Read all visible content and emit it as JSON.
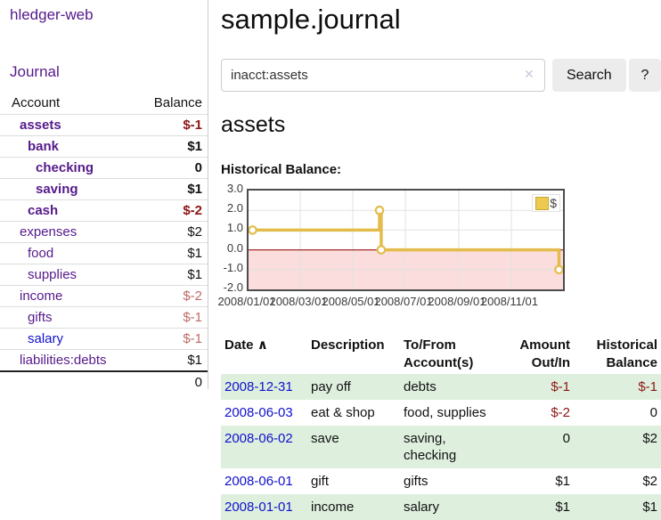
{
  "sidebar": {
    "app_title": "hledger-web",
    "journal_link": "Journal",
    "accounts_table": {
      "headers": [
        "Account",
        "Balance"
      ],
      "rows": [
        {
          "name": "assets",
          "depth": 0,
          "bold": true,
          "balance": "$-1",
          "balance_class": "neg-strong"
        },
        {
          "name": "bank",
          "depth": 1,
          "bold": true,
          "balance": "$1",
          "balance_class": ""
        },
        {
          "name": "checking",
          "depth": 2,
          "bold": true,
          "balance": "0",
          "balance_class": ""
        },
        {
          "name": "saving",
          "depth": 2,
          "bold": true,
          "balance": "$1",
          "balance_class": ""
        },
        {
          "name": "cash",
          "depth": 1,
          "bold": true,
          "balance": "$-2",
          "balance_class": "neg-strong"
        },
        {
          "name": "expenses",
          "depth": 0,
          "bold": false,
          "balance": "$2",
          "balance_class": ""
        },
        {
          "name": "food",
          "depth": 1,
          "bold": false,
          "balance": "$1",
          "balance_class": ""
        },
        {
          "name": "supplies",
          "depth": 1,
          "bold": false,
          "balance": "$1",
          "balance_class": ""
        },
        {
          "name": "income",
          "depth": 0,
          "bold": false,
          "balance": "$-2",
          "balance_class": "neg-soft"
        },
        {
          "name": "gifts",
          "depth": 1,
          "bold": false,
          "balance": "$-1",
          "balance_class": "neg-soft"
        },
        {
          "name": "salary",
          "depth": 1,
          "bold": false,
          "balance": "$-1",
          "balance_class": "neg-soft",
          "blue": true
        },
        {
          "name": "liabilities:debts",
          "depth": 0,
          "bold": false,
          "balance": "$1",
          "balance_class": ""
        }
      ],
      "total": "0"
    }
  },
  "header": {
    "title": "sample.journal"
  },
  "search": {
    "query": "inacct:assets",
    "clear_icon": "✕",
    "button_label": "Search",
    "help_label": "?"
  },
  "account_page": {
    "heading": "assets",
    "chart_label": "Historical Balance:"
  },
  "chart_data": {
    "type": "line",
    "step": true,
    "title": "Historical Balance:",
    "series": [
      {
        "name": "$",
        "color": "#e3bc4b",
        "points": [
          [
            "2008-01-01",
            1
          ],
          [
            "2008-06-01",
            2
          ],
          [
            "2008-06-03",
            0
          ],
          [
            "2008-12-31",
            -1
          ]
        ]
      }
    ],
    "x_range": [
      "2008-01-01",
      "2008-12-31"
    ],
    "ylim": [
      -2,
      3
    ],
    "yticks": [
      "3.0",
      "2.0",
      "1.0",
      "0.0",
      "-1.0",
      "-2.0"
    ],
    "xticks": [
      {
        "label": "2008/01/01",
        "date": "2008-01-01"
      },
      {
        "label": "2008/03/01",
        "date": "2008-03-01"
      },
      {
        "label": "2008/05/01",
        "date": "2008-05-01"
      },
      {
        "label": "2008/07/01",
        "date": "2008-07-01"
      },
      {
        "label": "2008/09/01",
        "date": "2008-09-01"
      },
      {
        "label": "2008/11/01",
        "date": "2008-11-01"
      }
    ],
    "legend": {
      "label": "$",
      "position": "top-right"
    },
    "grid": true,
    "negative_region_color": "#fbdddd",
    "zero_line_color": "#a52a2a"
  },
  "register_table": {
    "headers": {
      "date": "Date",
      "sort_asc_icon": "∧",
      "description": "Description",
      "accounts": "To/From Account(s)",
      "amount": "Amount Out/In",
      "balance": "Historical Balance"
    },
    "rows": [
      {
        "date": "2008-12-31",
        "description": "pay off",
        "accounts": "debts",
        "amount": "$-1",
        "amount_negative": true,
        "balance": "$-1",
        "balance_negative": true,
        "shaded": true
      },
      {
        "date": "2008-06-03",
        "description": "eat & shop",
        "accounts": "food, supplies",
        "amount": "$-2",
        "amount_negative": true,
        "balance": "0",
        "balance_negative": false,
        "shaded": false
      },
      {
        "date": "2008-06-02",
        "description": "save",
        "accounts": "saving, checking",
        "amount": "0",
        "amount_negative": false,
        "balance": "$2",
        "balance_negative": false,
        "shaded": true
      },
      {
        "date": "2008-06-01",
        "description": "gift",
        "accounts": "gifts",
        "amount": "$1",
        "amount_negative": false,
        "balance": "$2",
        "balance_negative": false,
        "shaded": false
      },
      {
        "date": "2008-01-01",
        "description": "income",
        "accounts": "salary",
        "amount": "$1",
        "amount_negative": false,
        "balance": "$1",
        "balance_negative": false,
        "shaded": true
      }
    ]
  }
}
